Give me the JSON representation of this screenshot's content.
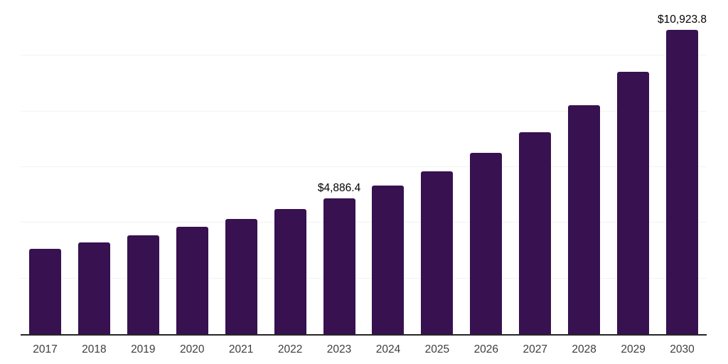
{
  "chart_data": {
    "type": "bar",
    "title": "",
    "xlabel": "",
    "ylabel": "",
    "categories": [
      "2017",
      "2018",
      "2019",
      "2020",
      "2021",
      "2022",
      "2023",
      "2024",
      "2025",
      "2026",
      "2027",
      "2028",
      "2029",
      "2030"
    ],
    "values": [
      3060,
      3290,
      3560,
      3850,
      4130,
      4490,
      4886.4,
      5340,
      5850,
      6510,
      7260,
      8230,
      9420,
      10923.8
    ],
    "data_labels": {
      "2023": "$4,886.4",
      "2030": "$10,923.8"
    },
    "ylim": [
      0,
      12000
    ],
    "gridline_interval": 2000,
    "grid": true,
    "legend": false,
    "colors": {
      "bar": "#371150",
      "axis_line": "#262626",
      "gridline": "#f3f3f3",
      "tick_label": "#3d3d3d",
      "data_label": "#000000",
      "background": "#ffffff"
    }
  }
}
